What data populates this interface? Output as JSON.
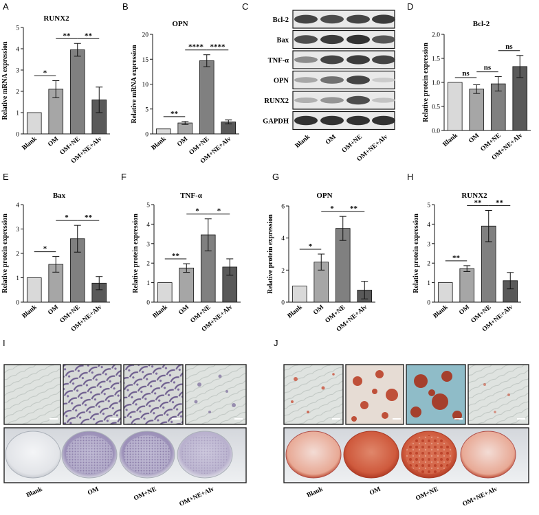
{
  "panels": {
    "A": "A",
    "B": "B",
    "C": "C",
    "D": "D",
    "E": "E",
    "F": "F",
    "G": "G",
    "H": "H",
    "I": "I",
    "J": "J"
  },
  "colors": {
    "blank": "#d9d9d9",
    "om": "#a6a6a6",
    "om_ne": "#808080",
    "om_ne_alv": "#595959",
    "alp_stain": "#7a6a9a",
    "ars_stain": "#c8462e"
  },
  "western_blot": {
    "labels": [
      "Bcl-2",
      "Bax",
      "TNF-α",
      "OPN",
      "RUNX2",
      "GAPDH"
    ],
    "lanes": [
      "Blank",
      "OM",
      "OM+NE",
      "OM+NE+Alv"
    ]
  },
  "staining": {
    "I_labels": [
      "Blank",
      "OM",
      "OM+NE",
      "OM+NE+Alv"
    ],
    "J_labels": [
      "Blank",
      "OM",
      "OM+NE",
      "OM+NE+Alv"
    ]
  },
  "chart_data": [
    {
      "id": "A",
      "type": "bar",
      "title": "RUNX2",
      "xlabel": "",
      "ylabel": "Relative mRNA expression",
      "categories": [
        "Blank",
        "OM",
        "OM+NE",
        "OM+NE+Alv"
      ],
      "values": [
        1.0,
        2.1,
        3.95,
        1.6
      ],
      "errors": [
        0,
        0.4,
        0.3,
        0.6
      ],
      "ylim": [
        0,
        5
      ],
      "yticks": [
        0,
        1,
        2,
        3,
        4,
        5
      ],
      "significance": [
        {
          "from": 0,
          "to": 1,
          "label": "*"
        },
        {
          "from": 1,
          "to": 2,
          "label": "**"
        },
        {
          "from": 2,
          "to": 3,
          "label": "**"
        }
      ]
    },
    {
      "id": "B",
      "type": "bar",
      "title": "OPN",
      "xlabel": "",
      "ylabel": "Relative mRNA expression",
      "categories": [
        "Blank",
        "OM",
        "OM+NE",
        "OM+NE+Alv"
      ],
      "values": [
        1.0,
        2.2,
        14.7,
        2.4
      ],
      "errors": [
        0,
        0.3,
        1.2,
        0.4
      ],
      "ylim": [
        0,
        20
      ],
      "yticks": [
        0,
        5,
        10,
        15,
        20
      ],
      "significance": [
        {
          "from": 0,
          "to": 1,
          "label": "**"
        },
        {
          "from": 1,
          "to": 2,
          "label": "****"
        },
        {
          "from": 2,
          "to": 3,
          "label": "****"
        }
      ]
    },
    {
      "id": "D",
      "type": "bar",
      "title": "Bcl-2",
      "xlabel": "",
      "ylabel": "Relative protein expression",
      "categories": [
        "Blank",
        "OM",
        "OM+NE",
        "OM+NE+Alv"
      ],
      "values": [
        1.0,
        0.86,
        0.97,
        1.33
      ],
      "errors": [
        0,
        0.09,
        0.15,
        0.23
      ],
      "ylim": [
        0,
        2.0
      ],
      "yticks": [
        0.0,
        0.5,
        1.0,
        1.5,
        2.0
      ],
      "significance": [
        {
          "from": 0,
          "to": 1,
          "label": "ns"
        },
        {
          "from": 1,
          "to": 2,
          "label": "ns"
        },
        {
          "from": 2,
          "to": 3,
          "label": "ns"
        }
      ]
    },
    {
      "id": "E",
      "type": "bar",
      "title": "Bax",
      "xlabel": "",
      "ylabel": "Relative protein expression",
      "categories": [
        "Blank",
        "OM",
        "OM+NE",
        "OM+NE+Alv"
      ],
      "values": [
        1.0,
        1.55,
        2.6,
        0.78
      ],
      "errors": [
        0,
        0.32,
        0.55,
        0.27
      ],
      "ylim": [
        0,
        4
      ],
      "yticks": [
        0,
        1,
        2,
        3,
        4
      ],
      "significance": [
        {
          "from": 0,
          "to": 1,
          "label": "*"
        },
        {
          "from": 1,
          "to": 2,
          "label": "*"
        },
        {
          "from": 2,
          "to": 3,
          "label": "**"
        }
      ]
    },
    {
      "id": "F",
      "type": "bar",
      "title": "TNF-α",
      "xlabel": "",
      "ylabel": "Relative protein expression",
      "categories": [
        "Blank",
        "OM",
        "OM+NE",
        "OM+NE+Alv"
      ],
      "values": [
        1.0,
        1.75,
        3.45,
        1.8
      ],
      "errors": [
        0,
        0.22,
        0.82,
        0.42
      ],
      "ylim": [
        0,
        5
      ],
      "yticks": [
        0,
        1,
        2,
        3,
        4,
        5
      ],
      "significance": [
        {
          "from": 0,
          "to": 1,
          "label": "**"
        },
        {
          "from": 1,
          "to": 2,
          "label": "*"
        },
        {
          "from": 2,
          "to": 3,
          "label": "*"
        }
      ]
    },
    {
      "id": "G",
      "type": "bar",
      "title": "OPN",
      "xlabel": "",
      "ylabel": "Relative protein expression",
      "categories": [
        "Blank",
        "OM",
        "OM+NE",
        "OM+NE+Alv"
      ],
      "values": [
        1.0,
        2.5,
        4.6,
        0.75
      ],
      "errors": [
        0,
        0.5,
        0.75,
        0.55
      ],
      "ylim": [
        0,
        6
      ],
      "yticks": [
        0,
        2,
        4,
        6
      ],
      "significance": [
        {
          "from": 0,
          "to": 1,
          "label": "*"
        },
        {
          "from": 1,
          "to": 2,
          "label": "*"
        },
        {
          "from": 2,
          "to": 3,
          "label": "**"
        }
      ]
    },
    {
      "id": "H",
      "type": "bar",
      "title": "RUNX2",
      "xlabel": "",
      "ylabel": "Relative protein expression",
      "categories": [
        "Blank",
        "OM",
        "OM+NE",
        "OM+NE+Alv"
      ],
      "values": [
        1.0,
        1.72,
        3.9,
        1.1
      ],
      "errors": [
        0,
        0.15,
        0.8,
        0.42
      ],
      "ylim": [
        0,
        5
      ],
      "yticks": [
        0,
        1,
        2,
        3,
        4,
        5
      ],
      "significance": [
        {
          "from": 0,
          "to": 1,
          "label": "**"
        },
        {
          "from": 1,
          "to": 2,
          "label": "**"
        },
        {
          "from": 2,
          "to": 3,
          "label": "**"
        }
      ]
    }
  ]
}
